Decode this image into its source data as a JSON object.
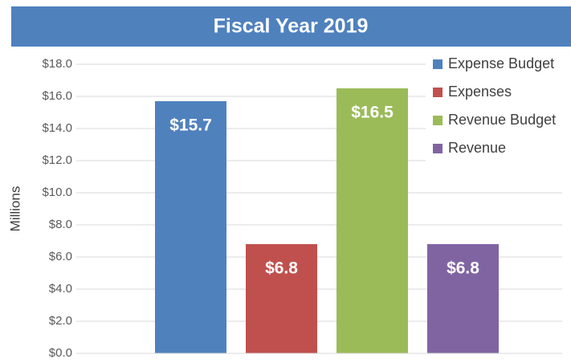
{
  "chart_data": {
    "type": "bar",
    "title": "Fiscal Year 2019",
    "y_label": "Millions",
    "series": [
      {
        "name": "Expense Budget",
        "color": "#4f81bd",
        "values": [
          15.7
        ],
        "value_labels": [
          "$15.7"
        ]
      },
      {
        "name": "Expenses",
        "color": "#c0504d",
        "values": [
          6.8
        ],
        "value_labels": [
          "$6.8"
        ]
      },
      {
        "name": "Revenue Budget",
        "color": "#9bbb59",
        "values": [
          16.5
        ],
        "value_labels": [
          "$16.5"
        ]
      },
      {
        "name": "Revenue",
        "color": "#8064a2",
        "values": [
          6.8
        ],
        "value_labels": [
          "$6.8"
        ]
      }
    ],
    "ylim": [
      0,
      18
    ],
    "yticks": [
      {
        "value": 0,
        "label": "$0.0"
      },
      {
        "value": 2,
        "label": "$2.0"
      },
      {
        "value": 4,
        "label": "$4.0"
      },
      {
        "value": 6,
        "label": "$6.0"
      },
      {
        "value": 8,
        "label": "$8.0"
      },
      {
        "value": 10,
        "label": "$10.0"
      },
      {
        "value": 12,
        "label": "$12.0"
      },
      {
        "value": 14,
        "label": "$14.0"
      },
      {
        "value": 16,
        "label": "$16.0"
      },
      {
        "value": 18,
        "label": "$18.0"
      }
    ],
    "grid": true,
    "legend": "upper right"
  }
}
